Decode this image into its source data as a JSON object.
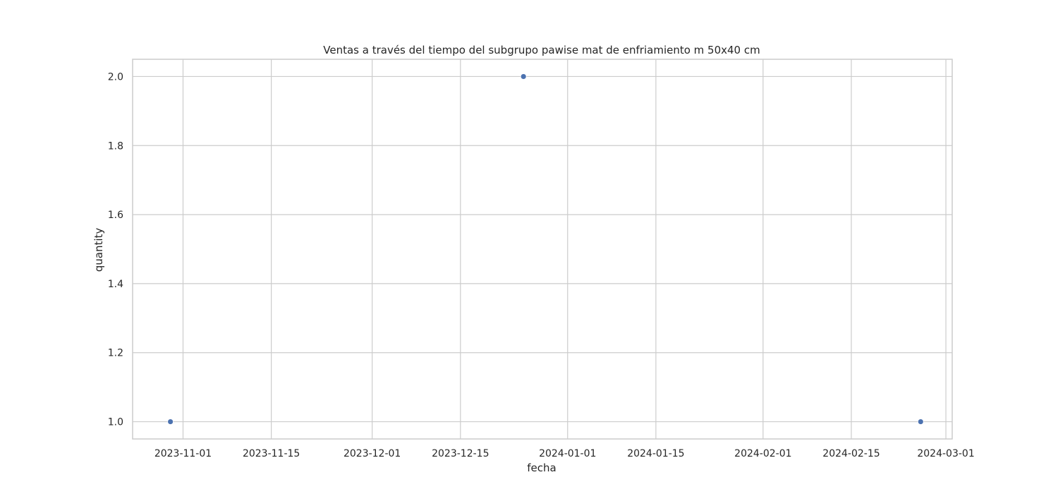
{
  "chart_data": {
    "type": "scatter",
    "title": "Ventas a través del tiempo del subgrupo pawise mat de enfriamiento m 50x40 cm",
    "xlabel": "fecha",
    "ylabel": "quantity",
    "x_ticks": [
      "2023-11-01",
      "2023-11-15",
      "2023-12-01",
      "2023-12-15",
      "2024-01-01",
      "2024-01-15",
      "2024-02-01",
      "2024-02-15",
      "2024-03-01"
    ],
    "y_ticks": [
      "1.0",
      "1.2",
      "1.4",
      "1.6",
      "1.8",
      "2.0"
    ],
    "xlim": [
      "2023-10-24",
      "2024-03-02"
    ],
    "ylim": [
      0.95,
      2.05
    ],
    "grid": true,
    "point_color": "#4c72b0",
    "points": [
      {
        "x": "2023-10-30",
        "y": 1
      },
      {
        "x": "2023-12-25",
        "y": 2
      },
      {
        "x": "2024-02-26",
        "y": 1
      }
    ]
  }
}
